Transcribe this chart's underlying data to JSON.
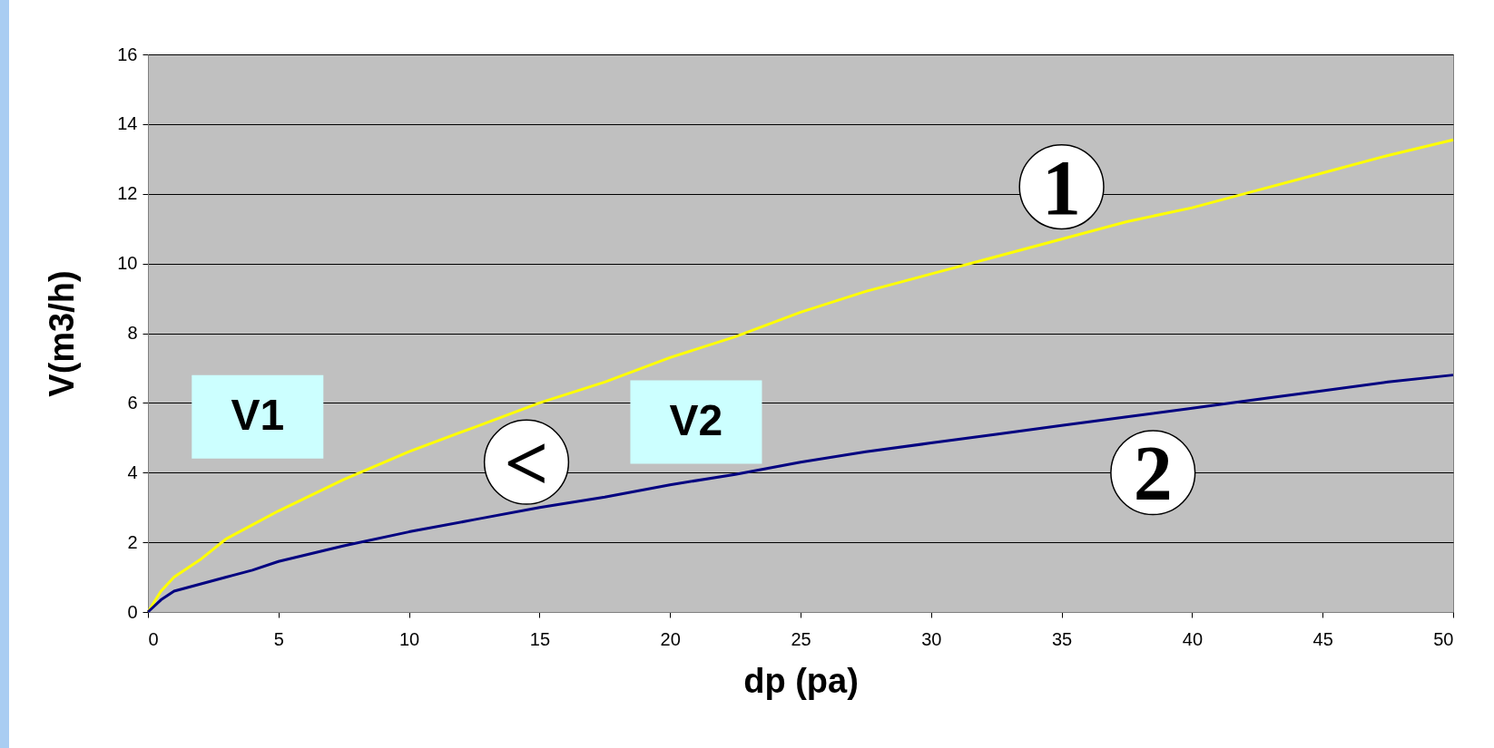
{
  "chart_data": {
    "type": "line",
    "xlabel": "dp (pa)",
    "ylabel": "V(m3/h)",
    "x": [
      0,
      0.5,
      1,
      2,
      3,
      4,
      5,
      7.5,
      10,
      12.5,
      15,
      17.5,
      20,
      22.5,
      25,
      27.5,
      30,
      32.5,
      35,
      37.5,
      40,
      42.5,
      45,
      47.5,
      50
    ],
    "series": [
      {
        "color": "#ffff00",
        "values": [
          0,
          0.6,
          1.0,
          1.5,
          2.1,
          2.5,
          2.9,
          3.8,
          4.6,
          5.3,
          6.0,
          6.6,
          7.3,
          7.9,
          8.6,
          9.2,
          9.7,
          10.2,
          10.7,
          11.2,
          11.6,
          12.1,
          12.6,
          13.1,
          13.55
        ]
      },
      {
        "color": "#000080",
        "values": [
          0,
          0.35,
          0.6,
          0.8,
          1.0,
          1.2,
          1.45,
          1.9,
          2.3,
          2.65,
          3.0,
          3.3,
          3.65,
          3.95,
          4.3,
          4.6,
          4.85,
          5.1,
          5.35,
          5.6,
          5.85,
          6.1,
          6.35,
          6.6,
          6.8
        ]
      }
    ],
    "xlim": [
      0,
      50
    ],
    "xticks": [
      0,
      5,
      10,
      15,
      20,
      25,
      30,
      35,
      40,
      45,
      50
    ],
    "ylim": [
      0,
      16
    ],
    "yticks": [
      0,
      2,
      4,
      6,
      8,
      10,
      12,
      14,
      16
    ],
    "grid": "y",
    "marker": "none",
    "line_style": "solid",
    "annotations": [
      "1",
      "2",
      "V1",
      "<",
      "V2"
    ]
  }
}
